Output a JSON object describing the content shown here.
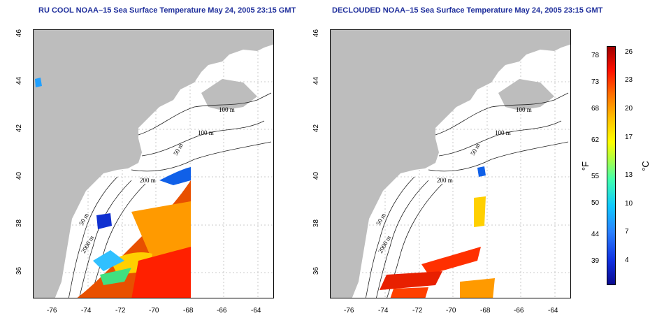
{
  "panels": [
    {
      "title": "RU COOL NOAA–15 Sea Surface Temperature May 24, 2005 23:15 GMT"
    },
    {
      "title": "DECLOUDED NOAA–15 Sea Surface Temperature May 24, 2005 23:15 GMT"
    }
  ],
  "axes": {
    "x_ticks": [
      "-76",
      "-74",
      "-72",
      "-70",
      "-68",
      "-66",
      "-64"
    ],
    "y_ticks": [
      "36",
      "38",
      "40",
      "42",
      "44",
      "46"
    ]
  },
  "contours": {
    "labels": [
      "100 m",
      "100 m",
      "50 m",
      "200 m",
      "50 m",
      "2000 m"
    ]
  },
  "colorbar": {
    "fahrenheit_ticks": [
      "78",
      "73",
      "68",
      "62",
      "55",
      "50",
      "44",
      "39"
    ],
    "celsius_ticks": [
      "26",
      "23",
      "20",
      "17",
      "13",
      "10",
      "7",
      "4"
    ],
    "unit_f": "°F",
    "unit_c": "°C"
  },
  "colors": {
    "land": "#bdbdbd",
    "title": "#1f2f9c"
  }
}
